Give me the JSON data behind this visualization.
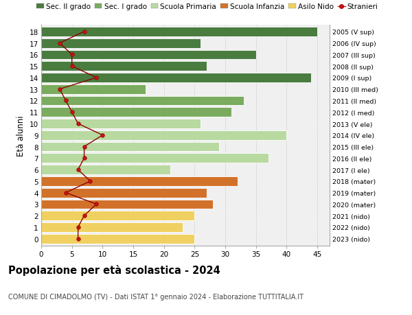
{
  "ages": [
    18,
    17,
    16,
    15,
    14,
    13,
    12,
    11,
    10,
    9,
    8,
    7,
    6,
    5,
    4,
    3,
    2,
    1,
    0
  ],
  "bar_values": [
    45,
    26,
    35,
    27,
    44,
    17,
    33,
    31,
    26,
    40,
    29,
    37,
    21,
    32,
    27,
    28,
    25,
    23,
    25
  ],
  "right_labels": [
    "2005 (V sup)",
    "2006 (IV sup)",
    "2007 (III sup)",
    "2008 (II sup)",
    "2009 (I sup)",
    "2010 (III med)",
    "2011 (II med)",
    "2012 (I med)",
    "2013 (V ele)",
    "2014 (IV ele)",
    "2015 (III ele)",
    "2016 (II ele)",
    "2017 (I ele)",
    "2018 (mater)",
    "2019 (mater)",
    "2020 (mater)",
    "2021 (nido)",
    "2022 (nido)",
    "2023 (nido)"
  ],
  "stranieri_values": [
    7,
    3,
    5,
    5,
    9,
    3,
    4,
    5,
    6,
    10,
    7,
    7,
    6,
    8,
    4,
    9,
    7,
    6,
    6
  ],
  "bar_colors": {
    "sec2": "#4a7c40",
    "sec1": "#7aab5e",
    "primaria": "#b8d9a0",
    "infanzia": "#d2722a",
    "nido": "#f0d060"
  },
  "legend_labels": [
    "Sec. II grado",
    "Sec. I grado",
    "Scuola Primaria",
    "Scuola Infanzia",
    "Asilo Nido",
    "Stranieri"
  ],
  "legend_colors": [
    "#4a7c40",
    "#7aab5e",
    "#b8d9a0",
    "#d2722a",
    "#f0d060",
    "#cc0000"
  ],
  "title": "Popolazione per età scolastica - 2024",
  "subtitle": "COMUNE DI CIMADOLMO (TV) - Dati ISTAT 1° gennaio 2024 - Elaborazione TUTTITALIA.IT",
  "ylabel_left": "Età alunni",
  "xlim": [
    0,
    47
  ],
  "xticks": [
    0,
    5,
    10,
    15,
    20,
    25,
    30,
    35,
    40,
    45
  ],
  "background_color": "#ffffff",
  "plot_bg_color": "#f0f0f0"
}
